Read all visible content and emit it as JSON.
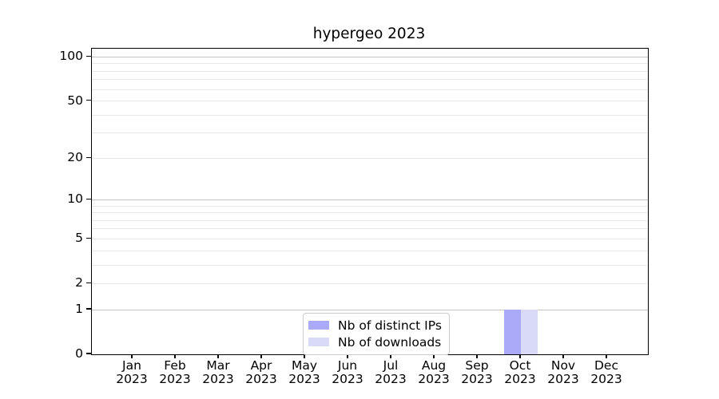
{
  "chart_data": {
    "type": "bar",
    "title": "hypergeo 2023",
    "categories": [
      "Jan",
      "Feb",
      "Mar",
      "Apr",
      "May",
      "Jun",
      "Jul",
      "Aug",
      "Sep",
      "Oct",
      "Nov",
      "Dec"
    ],
    "x_year_label": "2023",
    "series": [
      {
        "name": "Nb of distinct IPs",
        "color": "#aaaaf8",
        "values": [
          0,
          0,
          0,
          0,
          0,
          0,
          0,
          0,
          0,
          1,
          0,
          0
        ]
      },
      {
        "name": "Nb of downloads",
        "color": "#d9d9f8",
        "values": [
          0,
          0,
          0,
          0,
          0,
          0,
          0,
          0,
          0,
          1,
          0,
          0
        ]
      }
    ],
    "yscale": "log1p",
    "ylim": [
      0,
      114
    ],
    "yticks": [
      0,
      1,
      2,
      5,
      10,
      20,
      50,
      100
    ],
    "grid_major": [
      1,
      10,
      100
    ],
    "grid_minor": [
      2,
      3,
      4,
      5,
      6,
      7,
      8,
      9,
      20,
      30,
      40,
      50,
      60,
      70,
      80,
      90
    ],
    "grid": "horizontal",
    "legend_position": "inside-bottom-center",
    "colors": {
      "axis": "#000000",
      "text": "#000000",
      "grid_major": "#c4c4c4",
      "grid_minor": "#e9e9e9",
      "legend_border": "#cccccc",
      "background": "#ffffff"
    }
  }
}
